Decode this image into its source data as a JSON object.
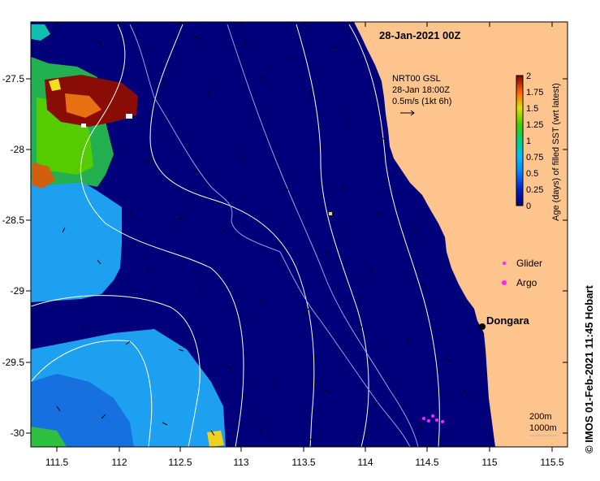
{
  "title": "28-Jan-2021 00Z",
  "x_ticks": [
    "111.5",
    "112",
    "112.5",
    "113",
    "113.5",
    "114",
    "114.5",
    "115",
    "115.5"
  ],
  "y_ticks": [
    "-27.5",
    "-28",
    "-28.5",
    "-29",
    "-29.5",
    "-30"
  ],
  "current_note": {
    "line1": "NRT00 GSL",
    "line2": "28-Jan 18:00Z",
    "line3": "0.5m/s (1kt 6h)"
  },
  "colorbar": {
    "label": "Age (days) of filled SST (wrt latest)",
    "ticks": [
      "0",
      "0.25",
      "0.5",
      "0.75",
      "1",
      "1.25",
      "1.5",
      "1.75",
      "2"
    ]
  },
  "legend": {
    "glider": "Glider",
    "argo": "Argo"
  },
  "place_label": "Dongara",
  "contours": {
    "line1": "200m",
    "line2": "1000m"
  },
  "credit": "© IMOS 01-Feb-2021 11:45 Hobart",
  "colors": {
    "ocean": "#00007a",
    "land": "#fdc48d",
    "glider": "#ff22ff"
  }
}
